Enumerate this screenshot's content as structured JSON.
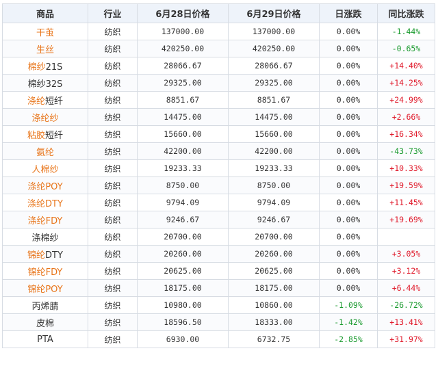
{
  "columns": [
    "商品",
    "行业",
    "6月28日价格",
    "6月29日价格",
    "日涨跌",
    "同比涨跌"
  ],
  "colors": {
    "link": "#e8751a",
    "up": "#e0192a",
    "down": "#1a9a2e",
    "header_bg": "#eef3fa",
    "border": "#d7dce3"
  },
  "rows": [
    {
      "name_a": "干茧",
      "name_b": "",
      "link_a": true,
      "link_b": false,
      "industry": "纺织",
      "p1": "137000.00",
      "p2": "137000.00",
      "daily": "0.00%",
      "daily_dir": "flat",
      "yoy": "-1.44%",
      "yoy_dir": "down"
    },
    {
      "name_a": "生丝",
      "name_b": "",
      "link_a": true,
      "link_b": false,
      "industry": "纺织",
      "p1": "420250.00",
      "p2": "420250.00",
      "daily": "0.00%",
      "daily_dir": "flat",
      "yoy": "-0.65%",
      "yoy_dir": "down"
    },
    {
      "name_a": "棉纱",
      "name_b": "21S",
      "link_a": true,
      "link_b": false,
      "industry": "纺织",
      "p1": "28066.67",
      "p2": "28066.67",
      "daily": "0.00%",
      "daily_dir": "flat",
      "yoy": "+14.40%",
      "yoy_dir": "up"
    },
    {
      "name_a": "棉纱",
      "name_b": "32S",
      "link_a": false,
      "link_b": false,
      "industry": "纺织",
      "p1": "29325.00",
      "p2": "29325.00",
      "daily": "0.00%",
      "daily_dir": "flat",
      "yoy": "+14.25%",
      "yoy_dir": "up"
    },
    {
      "name_a": "涤纶",
      "name_b": "短纤",
      "link_a": true,
      "link_b": false,
      "industry": "纺织",
      "p1": "8851.67",
      "p2": "8851.67",
      "daily": "0.00%",
      "daily_dir": "flat",
      "yoy": "+24.99%",
      "yoy_dir": "up"
    },
    {
      "name_a": "涤纶纱",
      "name_b": "",
      "link_a": true,
      "link_b": false,
      "industry": "纺织",
      "p1": "14475.00",
      "p2": "14475.00",
      "daily": "0.00%",
      "daily_dir": "flat",
      "yoy": "+2.66%",
      "yoy_dir": "up"
    },
    {
      "name_a": "粘胶",
      "name_b": "短纤",
      "link_a": true,
      "link_b": false,
      "industry": "纺织",
      "p1": "15660.00",
      "p2": "15660.00",
      "daily": "0.00%",
      "daily_dir": "flat",
      "yoy": "+16.34%",
      "yoy_dir": "up"
    },
    {
      "name_a": "氨纶",
      "name_b": "",
      "link_a": true,
      "link_b": false,
      "industry": "纺织",
      "p1": "42200.00",
      "p2": "42200.00",
      "daily": "0.00%",
      "daily_dir": "flat",
      "yoy": "-43.73%",
      "yoy_dir": "down"
    },
    {
      "name_a": "人棉纱",
      "name_b": "",
      "link_a": true,
      "link_b": false,
      "industry": "纺织",
      "p1": "19233.33",
      "p2": "19233.33",
      "daily": "0.00%",
      "daily_dir": "flat",
      "yoy": "+10.33%",
      "yoy_dir": "up"
    },
    {
      "name_a": "涤纶POY",
      "name_b": "",
      "link_a": true,
      "link_b": false,
      "industry": "纺织",
      "p1": "8750.00",
      "p2": "8750.00",
      "daily": "0.00%",
      "daily_dir": "flat",
      "yoy": "+19.59%",
      "yoy_dir": "up"
    },
    {
      "name_a": "涤纶DTY",
      "name_b": "",
      "link_a": true,
      "link_b": false,
      "industry": "纺织",
      "p1": "9794.09",
      "p2": "9794.09",
      "daily": "0.00%",
      "daily_dir": "flat",
      "yoy": "+11.45%",
      "yoy_dir": "up"
    },
    {
      "name_a": "涤纶FDY",
      "name_b": "",
      "link_a": true,
      "link_b": false,
      "industry": "纺织",
      "p1": "9246.67",
      "p2": "9246.67",
      "daily": "0.00%",
      "daily_dir": "flat",
      "yoy": "+19.69%",
      "yoy_dir": "up"
    },
    {
      "name_a": "涤棉纱",
      "name_b": "",
      "link_a": false,
      "link_b": false,
      "industry": "纺织",
      "p1": "20700.00",
      "p2": "20700.00",
      "daily": "0.00%",
      "daily_dir": "flat",
      "yoy": "",
      "yoy_dir": "flat"
    },
    {
      "name_a": "锦纶",
      "name_b": "DTY",
      "link_a": true,
      "link_b": false,
      "industry": "纺织",
      "p1": "20260.00",
      "p2": "20260.00",
      "daily": "0.00%",
      "daily_dir": "flat",
      "yoy": "+3.05%",
      "yoy_dir": "up"
    },
    {
      "name_a": "锦纶FDY",
      "name_b": "",
      "link_a": true,
      "link_b": false,
      "industry": "纺织",
      "p1": "20625.00",
      "p2": "20625.00",
      "daily": "0.00%",
      "daily_dir": "flat",
      "yoy": "+3.12%",
      "yoy_dir": "up"
    },
    {
      "name_a": "锦纶POY",
      "name_b": "",
      "link_a": true,
      "link_b": false,
      "industry": "纺织",
      "p1": "18175.00",
      "p2": "18175.00",
      "daily": "0.00%",
      "daily_dir": "flat",
      "yoy": "+6.44%",
      "yoy_dir": "up"
    },
    {
      "name_a": "丙烯腈",
      "name_b": "",
      "link_a": false,
      "link_b": false,
      "industry": "纺织",
      "p1": "10980.00",
      "p2": "10860.00",
      "daily": "-1.09%",
      "daily_dir": "down",
      "yoy": "-26.72%",
      "yoy_dir": "down"
    },
    {
      "name_a": "皮棉",
      "name_b": "",
      "link_a": false,
      "link_b": false,
      "industry": "纺织",
      "p1": "18596.50",
      "p2": "18333.00",
      "daily": "-1.42%",
      "daily_dir": "down",
      "yoy": "+13.41%",
      "yoy_dir": "up"
    },
    {
      "name_a": "PTA",
      "name_b": "",
      "link_a": false,
      "link_b": false,
      "industry": "纺织",
      "p1": "6930.00",
      "p2": "6732.75",
      "daily": "-2.85%",
      "daily_dir": "down",
      "yoy": "+31.97%",
      "yoy_dir": "up"
    }
  ]
}
